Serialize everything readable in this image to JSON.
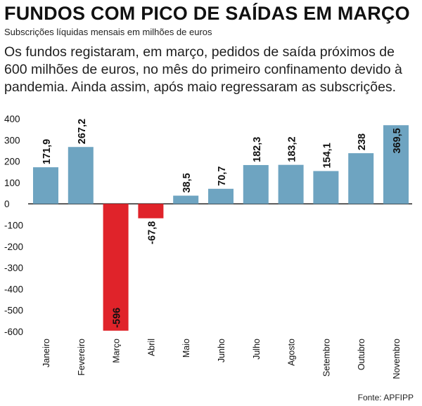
{
  "header": {
    "title": "FUNDOS COM PICO DE SAÍDAS EM MARÇO",
    "subtitle": "Subscrições líquidas mensais em milhões de euros"
  },
  "body_text": "Os fundos registaram, em março, pedidos de saída próximos de 600 milhões de euros, no mês do primeiro confinamento devido à pandemia. Ainda assim, após maio regressaram as subscrições.",
  "source": "Fonte: APFIPP",
  "colors": {
    "positive": "#6ea4c1",
    "negative": "#e0232a",
    "zero_line": "#111111"
  },
  "chart_data": {
    "type": "bar",
    "title": "FUNDOS COM PICO DE SAÍDAS EM MARÇO",
    "subtitle": "Subscrições líquidas mensais em milhões de euros",
    "xlabel": "",
    "ylabel": "",
    "categories": [
      "Janeiro",
      "Fevereiro",
      "Março",
      "Abril",
      "Maio",
      "Junho",
      "Julho",
      "Agosto",
      "Setembro",
      "Outubro",
      "Novembro"
    ],
    "values": [
      171.9,
      267.2,
      -596,
      -67.8,
      38.5,
      70.7,
      182.3,
      183.2,
      154.1,
      238,
      369.5
    ],
    "value_labels": [
      "171,9",
      "267,2",
      "-596",
      "-67,8",
      "38,5",
      "70,7",
      "182,3",
      "183,2",
      "154,1",
      "238",
      "369,5"
    ],
    "ylim": [
      -600,
      400
    ],
    "yticks": [
      400,
      300,
      200,
      100,
      0,
      -100,
      -200,
      -300,
      -400,
      -500,
      -600
    ],
    "grid": false,
    "legend": "none"
  }
}
